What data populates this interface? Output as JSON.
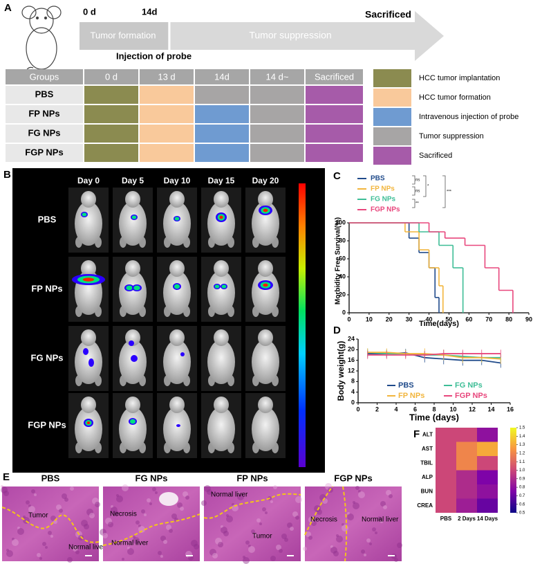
{
  "panel_a": {
    "label": "A",
    "timeline": {
      "start": "0 d",
      "probe_day": "14d",
      "end": "Sacrificed",
      "phase_1": "Tumor formation",
      "phase_2": "Tumor suppression",
      "event": "Injection of probe"
    },
    "table": {
      "header": [
        "Groups",
        "0 d",
        "13 d",
        "14d",
        "14 d~",
        "Sacrificed"
      ],
      "rows": [
        {
          "group": "PBS",
          "colors": [
            "#8b8b50",
            "#f9c99b",
            "#a7a5a5",
            "#a7a5a5",
            "#a65ba9"
          ]
        },
        {
          "group": "FP NPs",
          "colors": [
            "#8b8b50",
            "#f9c99b",
            "#6f9bd1",
            "#a7a5a5",
            "#a65ba9"
          ]
        },
        {
          "group": "FG NPs",
          "colors": [
            "#8b8b50",
            "#f9c99b",
            "#6f9bd1",
            "#a7a5a5",
            "#a65ba9"
          ]
        },
        {
          "group": "FGP NPs",
          "colors": [
            "#8b8b50",
            "#f9c99b",
            "#6f9bd1",
            "#a7a5a5",
            "#a65ba9"
          ]
        }
      ]
    },
    "legend": [
      {
        "label": "HCC tumor implantation",
        "color": "#8b8b50"
      },
      {
        "label": "HCC tumor formation",
        "color": "#f9c99b"
      },
      {
        "label": "Intravenous injection of probe",
        "color": "#6f9bd1"
      },
      {
        "label": "Tumor suppression",
        "color": "#a7a5a5"
      },
      {
        "label": "Sacrificed",
        "color": "#a65ba9"
      }
    ]
  },
  "panel_b": {
    "label": "B",
    "days": [
      "Day 0",
      "Day 5",
      "Day 10",
      "Day 15",
      "Day 20"
    ],
    "groups": [
      "PBS",
      "FP NPs",
      "FG NPs",
      "FGP NPs"
    ]
  },
  "chart_data": [
    {
      "type": "step",
      "panel": "C",
      "x_label": "Time(days)",
      "y_label": "Morbidity Free Survival(%)",
      "xlim": [
        0,
        90
      ],
      "xticks": [
        0,
        10,
        20,
        30,
        40,
        50,
        60,
        70,
        80,
        90
      ],
      "ylim": [
        0,
        100
      ],
      "yticks": [
        0,
        20,
        40,
        60,
        80,
        100
      ],
      "annotations": [
        "ns",
        "ns",
        "*",
        "**",
        "***"
      ],
      "series": [
        {
          "name": "PBS",
          "color": "#1f4a8a",
          "x": [
            0,
            30,
            35,
            40,
            43,
            45
          ],
          "values": [
            100,
            83,
            67,
            50,
            17,
            0
          ]
        },
        {
          "name": "FP NPs",
          "color": "#f2b53c",
          "x": [
            0,
            28,
            35,
            40,
            45,
            47
          ],
          "values": [
            100,
            90,
            70,
            50,
            30,
            0
          ]
        },
        {
          "name": "FG NPs",
          "color": "#3dbd96",
          "x": [
            0,
            35,
            45,
            52,
            57
          ],
          "values": [
            100,
            90,
            75,
            50,
            0
          ]
        },
        {
          "name": "FGP NPs",
          "color": "#e8467c",
          "x": [
            0,
            40,
            48,
            58,
            68,
            75,
            82
          ],
          "values": [
            100,
            90,
            83,
            75,
            50,
            25,
            0
          ]
        }
      ]
    },
    {
      "type": "line",
      "panel": "D",
      "x_label": "Time (days)",
      "y_label": "Body weight(g)",
      "xlim": [
        0,
        16
      ],
      "xticks": [
        0,
        2,
        4,
        6,
        8,
        10,
        12,
        14,
        16
      ],
      "ylim": [
        0,
        24
      ],
      "yticks": [
        0,
        4,
        8,
        12,
        16,
        20,
        24
      ],
      "x": [
        1,
        3,
        5,
        7,
        9,
        11,
        13,
        15
      ],
      "series": [
        {
          "name": "PBS",
          "color": "#1f4a8a",
          "values": [
            18.5,
            18.5,
            18.8,
            17,
            16.5,
            16,
            16,
            15
          ],
          "errors": [
            1.5,
            1.5,
            1.5,
            1.8,
            2,
            2,
            1.8,
            1.8
          ]
        },
        {
          "name": "FG NPs",
          "color": "#3dbd96",
          "values": [
            19,
            18.5,
            18.5,
            18,
            18,
            17.5,
            17,
            17
          ],
          "errors": [
            1.5,
            1.5,
            1.5,
            1.5,
            2,
            2,
            1.8,
            1.5
          ]
        },
        {
          "name": "FP NPs",
          "color": "#f2b53c",
          "values": [
            19,
            19,
            18.5,
            18.5,
            18,
            17,
            17,
            16.5
          ],
          "errors": [
            1.5,
            1.5,
            1.5,
            2,
            2,
            2,
            1.8,
            1.8
          ]
        },
        {
          "name": "FGP NPs",
          "color": "#e8467c",
          "values": [
            18,
            18,
            18,
            18,
            18.5,
            18.5,
            18.5,
            18.5
          ],
          "errors": [
            1.5,
            1.5,
            1.5,
            1.5,
            1.5,
            1.5,
            1.5,
            1.5
          ]
        }
      ]
    },
    {
      "type": "heatmap",
      "panel": "F",
      "rows": [
        "ALT",
        "AST",
        "TBIL",
        "ALP",
        "BUN",
        "CREA"
      ],
      "columns": [
        "PBS",
        "2 Days",
        "14 Days"
      ],
      "values": [
        [
          1,
          1,
          0.8
        ],
        [
          1,
          1.2,
          1.3
        ],
        [
          1,
          1.2,
          1.0
        ],
        [
          1,
          0.9,
          0.75
        ],
        [
          1,
          0.9,
          0.8
        ],
        [
          1,
          0.85,
          0.7
        ]
      ],
      "clim": [
        0.5,
        1.5
      ],
      "cticks": [
        0.5,
        0.6,
        0.7,
        0.8,
        0.9,
        {
          "value": 1,
          "label": "1.0"
        },
        1.1,
        1.2,
        1.3,
        1.4,
        1.5
      ],
      "colormap": [
        "#0d0887",
        "#7e03a8",
        "#cc4778",
        "#f89540",
        "#f0f921"
      ]
    }
  ],
  "panel_e": {
    "label": "E",
    "images": [
      {
        "title": "PBS",
        "labels": [
          "Tumor",
          "Normal liver"
        ]
      },
      {
        "title": "FG NPs",
        "labels": [
          "Necrosis",
          "Normal liver"
        ]
      },
      {
        "title": "FP NPs",
        "labels": [
          "Normal liver",
          "Tumor"
        ]
      },
      {
        "title": "FGP NPs",
        "labels": [
          "Necrosis",
          "Normal liver"
        ]
      }
    ]
  }
}
